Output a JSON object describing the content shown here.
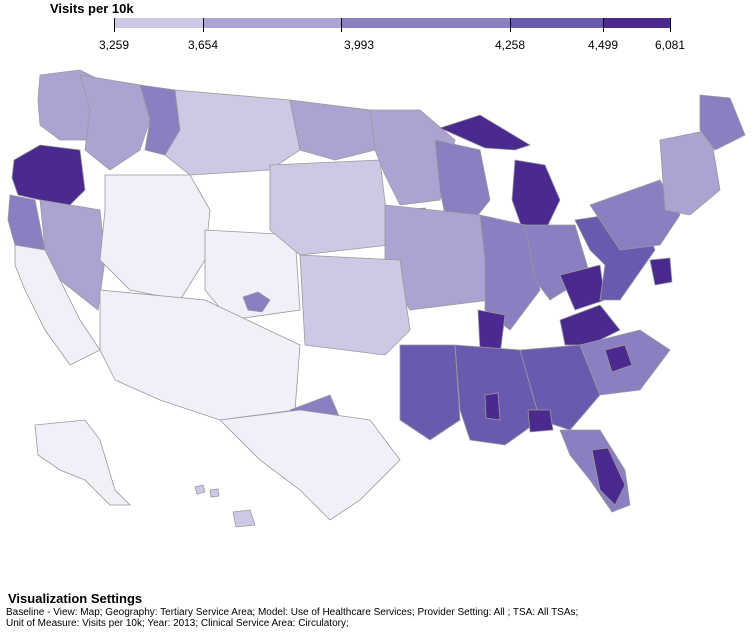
{
  "legend": {
    "title": "Visits per 10k",
    "ticks": [
      "3,259",
      "3,654",
      "3,993",
      "4,258",
      "4,499",
      "6,081"
    ],
    "colors": [
      "#f1eff8",
      "#cdc8e4",
      "#aba3d2",
      "#8a7fc0",
      "#6a5aaf",
      "#4a2a8f"
    ]
  },
  "map": {
    "stroke_color": "#9a9a9a",
    "inset_regions": [
      "alaska",
      "hawaii"
    ]
  },
  "settings": {
    "title": "Visualization Settings",
    "line1": "Baseline - View: Map; Geography: Tertiary Service Area; Model: Use of Healthcare Services; Provider Setting: All ; TSA: All TSAs;",
    "line2": "Unit of Measure: Visits per 10k; Year: 2013; Clinical Service Area: Circulatory;"
  }
}
